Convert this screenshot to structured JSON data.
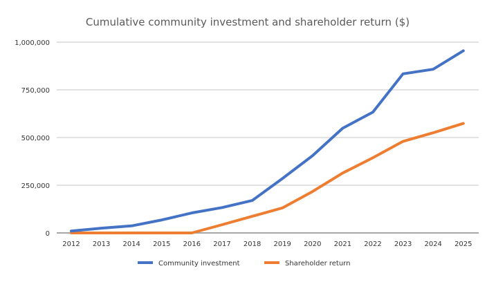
{
  "chart_data": {
    "type": "line",
    "title": "Cumulative community investment and shareholder return ($)",
    "xlabel": "",
    "ylabel": "",
    "categories": [
      "2012",
      "2013",
      "2014",
      "2015",
      "2016",
      "2017",
      "2018",
      "2019",
      "2020",
      "2021",
      "2022",
      "2023",
      "2024",
      "2025"
    ],
    "ylim": [
      0,
      1000000
    ],
    "yticks": [
      0,
      250000,
      500000,
      750000,
      1000000
    ],
    "ytick_labels": [
      "0",
      "250,000",
      "500,000",
      "750,000",
      "1,000,000"
    ],
    "grid": true,
    "legend_position": "bottom",
    "series": [
      {
        "name": "Community investment",
        "color": "#4472C4",
        "values": [
          10000,
          25000,
          37000,
          68000,
          105000,
          133000,
          170000,
          285000,
          405000,
          549000,
          633000,
          834000,
          858000,
          955000
        ]
      },
      {
        "name": "Shareholder return",
        "color": "#ED7D31",
        "values": [
          0,
          0,
          0,
          0,
          0,
          43000,
          87000,
          131000,
          217000,
          314000,
          394000,
          480000,
          525000,
          574000
        ]
      }
    ]
  }
}
